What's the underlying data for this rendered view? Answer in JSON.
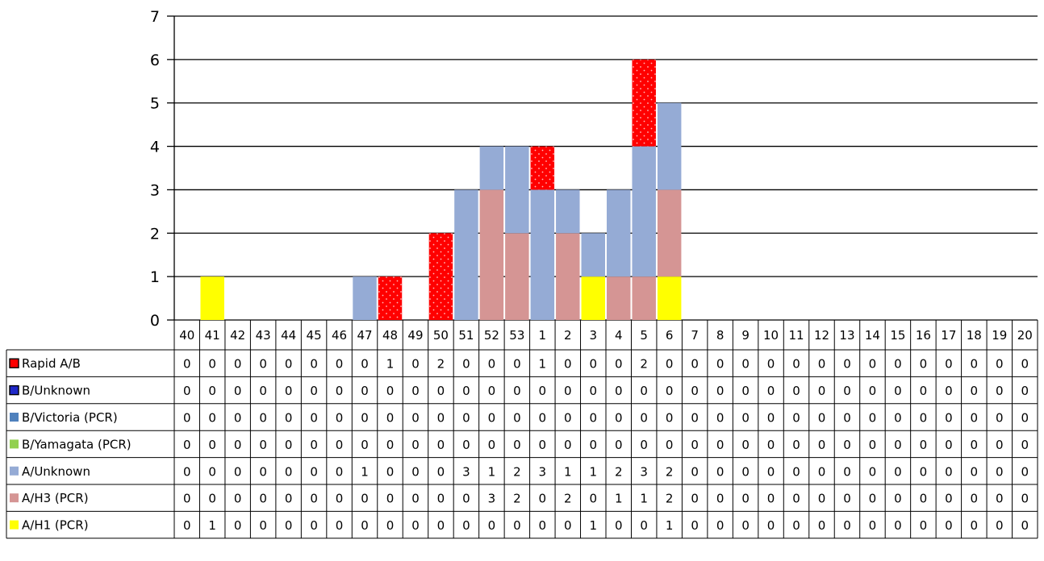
{
  "chart_data": {
    "type": "bar",
    "stacked": true,
    "grid": true,
    "legend": "data-table",
    "ylim": [
      0,
      7
    ],
    "yticks": [
      0,
      1,
      2,
      3,
      4,
      5,
      6,
      7
    ],
    "categories": [
      "40",
      "41",
      "42",
      "43",
      "44",
      "45",
      "46",
      "47",
      "48",
      "49",
      "50",
      "51",
      "52",
      "53",
      "1",
      "2",
      "3",
      "4",
      "5",
      "6",
      "7",
      "8",
      "9",
      "10",
      "11",
      "12",
      "13",
      "14",
      "15",
      "16",
      "17",
      "18",
      "19",
      "20"
    ],
    "series": [
      {
        "name": "A/H1 (PCR)",
        "color": "#ffff00",
        "pattern": "none",
        "values": [
          0,
          1,
          0,
          0,
          0,
          0,
          0,
          0,
          0,
          0,
          0,
          0,
          0,
          0,
          0,
          0,
          1,
          0,
          0,
          1,
          0,
          0,
          0,
          0,
          0,
          0,
          0,
          0,
          0,
          0,
          0,
          0,
          0,
          0
        ]
      },
      {
        "name": "A/H3 (PCR)",
        "color": "#d59594",
        "pattern": "none",
        "values": [
          0,
          0,
          0,
          0,
          0,
          0,
          0,
          0,
          0,
          0,
          0,
          0,
          3,
          2,
          0,
          2,
          0,
          1,
          1,
          2,
          0,
          0,
          0,
          0,
          0,
          0,
          0,
          0,
          0,
          0,
          0,
          0,
          0,
          0
        ]
      },
      {
        "name": "A/Unknown",
        "color": "#95abd5",
        "pattern": "none",
        "values": [
          0,
          0,
          0,
          0,
          0,
          0,
          0,
          1,
          0,
          0,
          0,
          3,
          1,
          2,
          3,
          1,
          1,
          2,
          3,
          2,
          0,
          0,
          0,
          0,
          0,
          0,
          0,
          0,
          0,
          0,
          0,
          0,
          0,
          0
        ]
      },
      {
        "name": "B/Yamagata (PCR)",
        "color": "#92d050",
        "pattern": "none",
        "values": [
          0,
          0,
          0,
          0,
          0,
          0,
          0,
          0,
          0,
          0,
          0,
          0,
          0,
          0,
          0,
          0,
          0,
          0,
          0,
          0,
          0,
          0,
          0,
          0,
          0,
          0,
          0,
          0,
          0,
          0,
          0,
          0,
          0,
          0
        ]
      },
      {
        "name": "B/Victoria (PCR)",
        "color": "#4f81bd",
        "pattern": "none",
        "values": [
          0,
          0,
          0,
          0,
          0,
          0,
          0,
          0,
          0,
          0,
          0,
          0,
          0,
          0,
          0,
          0,
          0,
          0,
          0,
          0,
          0,
          0,
          0,
          0,
          0,
          0,
          0,
          0,
          0,
          0,
          0,
          0,
          0,
          0
        ]
      },
      {
        "name": "B/Unknown",
        "color": "#1f28c8",
        "pattern": "dotted",
        "values": [
          0,
          0,
          0,
          0,
          0,
          0,
          0,
          0,
          0,
          0,
          0,
          0,
          0,
          0,
          0,
          0,
          0,
          0,
          0,
          0,
          0,
          0,
          0,
          0,
          0,
          0,
          0,
          0,
          0,
          0,
          0,
          0,
          0,
          0
        ]
      },
      {
        "name": "Rapid A/B",
        "color": "#ff0000",
        "pattern": "dotted",
        "values": [
          0,
          0,
          0,
          0,
          0,
          0,
          0,
          0,
          1,
          0,
          2,
          0,
          0,
          0,
          1,
          0,
          0,
          0,
          2,
          0,
          0,
          0,
          0,
          0,
          0,
          0,
          0,
          0,
          0,
          0,
          0,
          0,
          0,
          0
        ]
      }
    ],
    "table_order": [
      "Rapid A/B",
      "B/Unknown",
      "B/Victoria (PCR)",
      "B/Yamagata (PCR)",
      "A/Unknown",
      "A/H3 (PCR)",
      "A/H1 (PCR)"
    ]
  }
}
